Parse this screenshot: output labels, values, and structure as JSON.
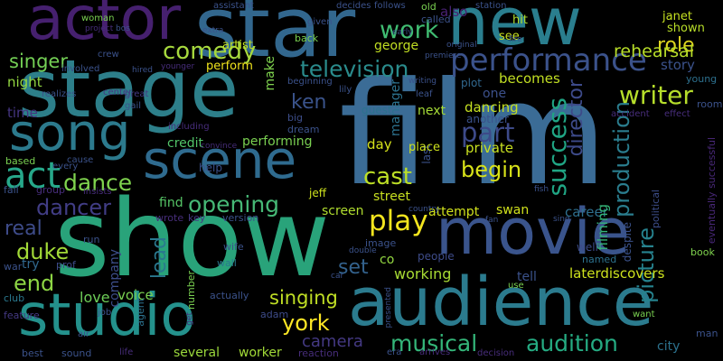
{
  "image": {
    "type": "word cloud",
    "background": "#000000",
    "words": [
      {
        "text": "film",
        "color": "#3b6c96"
      },
      {
        "text": "show",
        "color": "#29a37a"
      },
      {
        "text": "stage",
        "color": "#2d7f8a"
      },
      {
        "text": "star",
        "color": "#32678e"
      },
      {
        "text": "actor",
        "color": "#46206f"
      },
      {
        "text": "new",
        "color": "#2a7e8e"
      },
      {
        "text": "movie",
        "color": "#3a548c"
      },
      {
        "text": "audience",
        "color": "#2b7b8e"
      },
      {
        "text": "studio",
        "color": "#24918c"
      },
      {
        "text": "scene",
        "color": "#2f6b8f"
      },
      {
        "text": "song",
        "color": "#2c7a8d"
      },
      {
        "text": "act",
        "color": "#27a88a"
      },
      {
        "text": "performance",
        "color": "#3b528b"
      },
      {
        "text": "television",
        "color": "#2a8b8c"
      },
      {
        "text": "comedy",
        "color": "#a7d93e"
      },
      {
        "text": "singer",
        "color": "#74d055"
      },
      {
        "text": "work",
        "color": "#40bd72"
      },
      {
        "text": "role",
        "color": "#ddd41f"
      },
      {
        "text": "writer",
        "color": "#b6de2b"
      },
      {
        "text": "dance",
        "color": "#7fd34e"
      },
      {
        "text": "dancer",
        "color": "#413d85"
      },
      {
        "text": "opening",
        "color": "#46b876"
      },
      {
        "text": "play",
        "color": "#f3e51e"
      },
      {
        "text": "cast",
        "color": "#bddf26"
      },
      {
        "text": "begin",
        "color": "#d8e219"
      },
      {
        "text": "part",
        "color": "#3d4a89"
      },
      {
        "text": "director",
        "color": "#3d4a89"
      },
      {
        "text": "production",
        "color": "#2a7d8e"
      },
      {
        "text": "success",
        "color": "#20a584"
      },
      {
        "text": "picture",
        "color": "#26828e"
      },
      {
        "text": "ken",
        "color": "#3a538b"
      },
      {
        "text": "end",
        "color": "#8dd544"
      },
      {
        "text": "duke",
        "color": "#a2da37"
      },
      {
        "text": "real",
        "color": "#3e4c8a"
      },
      {
        "text": "set",
        "color": "#33628d"
      },
      {
        "text": "lead",
        "color": "#2a788e"
      },
      {
        "text": "york",
        "color": "#fde725"
      },
      {
        "text": "singing",
        "color": "#c0df25"
      },
      {
        "text": "musical",
        "color": "#34b679"
      },
      {
        "text": "audition",
        "color": "#25ab82"
      },
      {
        "text": "camera",
        "color": "#443983"
      },
      {
        "text": "love",
        "color": "#6ece58"
      },
      {
        "text": "voice",
        "color": "#7ad151"
      },
      {
        "text": "working",
        "color": "#a8db34"
      },
      {
        "text": "rehearsal",
        "color": "#b8de29"
      },
      {
        "text": "story",
        "color": "#3b528b"
      },
      {
        "text": "night",
        "color": "#93d741"
      },
      {
        "text": "time",
        "color": "#453581"
      },
      {
        "text": "george",
        "color": "#c2df23"
      },
      {
        "text": "becomes",
        "color": "#c2df23"
      },
      {
        "text": "dancing",
        "color": "#c5e021"
      },
      {
        "text": "private",
        "color": "#c8e020"
      },
      {
        "text": "career",
        "color": "#2e6f8e"
      },
      {
        "text": "filming",
        "color": "#35b779"
      },
      {
        "text": "laterdiscovers",
        "color": "#cde11d"
      },
      {
        "text": "day",
        "color": "#d5e21a"
      },
      {
        "text": "several",
        "color": "#9bd93c"
      },
      {
        "text": "worker",
        "color": "#a2da37"
      },
      {
        "text": "city",
        "color": "#2c728e"
      },
      {
        "text": "company",
        "color": "#3d4e8a"
      },
      {
        "text": "performing",
        "color": "#7ad151"
      },
      {
        "text": "credit",
        "color": "#52c569"
      },
      {
        "text": "find",
        "color": "#56c667"
      },
      {
        "text": "screen",
        "color": "#b0dd2f"
      },
      {
        "text": "swan",
        "color": "#d0e11c"
      },
      {
        "text": "street",
        "color": "#c8e020"
      },
      {
        "text": "next",
        "color": "#a5db36"
      },
      {
        "text": "manager",
        "color": "#2c728e"
      },
      {
        "text": "one",
        "color": "#3c508b"
      },
      {
        "text": "attempt",
        "color": "#d0e11c"
      },
      {
        "text": "make",
        "color": "#7fd34e"
      },
      {
        "text": "perform",
        "color": "#f1e51d"
      },
      {
        "text": "artist",
        "color": "#c2df23"
      },
      {
        "text": "hit",
        "color": "#b0dd2f"
      },
      {
        "text": "see",
        "color": "#c8e020"
      },
      {
        "text": "also",
        "color": "#482173"
      },
      {
        "text": "janet",
        "color": "#c5e021"
      },
      {
        "text": "shown",
        "color": "#b8de29"
      },
      {
        "text": "tell",
        "color": "#3b528b"
      },
      {
        "text": "co",
        "color": "#93d741"
      },
      {
        "text": "help",
        "color": "#3b528b"
      },
      {
        "text": "jeff",
        "color": "#cde11d"
      },
      {
        "text": "people",
        "color": "#3e4c8a"
      },
      {
        "text": "well",
        "color": "#3e4c8a"
      },
      {
        "text": "book",
        "color": "#7fd34e"
      },
      {
        "text": "named",
        "color": "#2c728e"
      },
      {
        "text": "despite",
        "color": "#3b528b"
      },
      {
        "text": "political",
        "color": "#3d4e8a"
      },
      {
        "text": "eventually successful",
        "color": "#482878"
      },
      {
        "text": "young",
        "color": "#2d708e"
      },
      {
        "text": "last",
        "color": "#3b528b"
      },
      {
        "text": "place",
        "color": "#cde11d"
      },
      {
        "text": "another",
        "color": "#3b528b"
      },
      {
        "text": "guest",
        "color": "#2c728e"
      },
      {
        "text": "plot",
        "color": "#31688e"
      },
      {
        "text": "room",
        "color": "#3b528b"
      },
      {
        "text": "accident",
        "color": "#472d7b"
      },
      {
        "text": "effect",
        "color": "#472d7b"
      },
      {
        "text": "big",
        "color": "#3d4e8a"
      },
      {
        "text": "dream",
        "color": "#3b528b"
      },
      {
        "text": "feature",
        "color": "#443983"
      },
      {
        "text": "club",
        "color": "#2a788e"
      },
      {
        "text": "group",
        "color": "#472d7b"
      },
      {
        "text": "fall",
        "color": "#3b528b"
      },
      {
        "text": "agent",
        "color": "#2c728e"
      },
      {
        "text": "war",
        "color": "#3b528b"
      },
      {
        "text": "try",
        "color": "#31688e"
      },
      {
        "text": "prof",
        "color": "#3e4c8a"
      },
      {
        "text": "wife",
        "color": "#3b528b"
      },
      {
        "text": "wall",
        "color": "#2a788e"
      },
      {
        "text": "number",
        "color": "#7ad151"
      },
      {
        "text": "actually",
        "color": "#3b528b"
      },
      {
        "text": "adam",
        "color": "#3e4c8a"
      },
      {
        "text": "image",
        "color": "#3b528b"
      },
      {
        "text": "version",
        "color": "#3b528b"
      },
      {
        "text": "key",
        "color": "#443983"
      },
      {
        "text": "wrote",
        "color": "#472d7b"
      },
      {
        "text": "run",
        "color": "#3b528b"
      },
      {
        "text": "center",
        "color": "#443983"
      },
      {
        "text": "great",
        "color": "#443983"
      },
      {
        "text": "gail",
        "color": "#3b528b"
      },
      {
        "text": "leaf",
        "color": "#3b528b"
      },
      {
        "text": "lily",
        "color": "#3b528b"
      },
      {
        "text": "beginning",
        "color": "#3b528b"
      },
      {
        "text": "back",
        "color": "#7ad151"
      },
      {
        "text": "given",
        "color": "#3b528b"
      },
      {
        "text": "including",
        "color": "#472d7b"
      },
      {
        "text": "convince",
        "color": "#472d7b"
      },
      {
        "text": "based",
        "color": "#7ad151"
      },
      {
        "text": "every",
        "color": "#3b528b"
      },
      {
        "text": "cause",
        "color": "#3b528b"
      },
      {
        "text": "insists",
        "color": "#472d7b"
      },
      {
        "text": "crew",
        "color": "#3b528b"
      },
      {
        "text": "involved",
        "color": "#3b528b"
      },
      {
        "text": "realizes",
        "color": "#3b528b"
      },
      {
        "text": "job",
        "color": "#3b528b"
      },
      {
        "text": "air",
        "color": "#3b528b"
      },
      {
        "text": "best",
        "color": "#3b528b"
      },
      {
        "text": "sound",
        "color": "#3b528b"
      },
      {
        "text": "life",
        "color": "#472d7b"
      },
      {
        "text": "reaction",
        "color": "#472d7b"
      },
      {
        "text": "era",
        "color": "#3b528b"
      },
      {
        "text": "arrives",
        "color": "#472d7b"
      },
      {
        "text": "decision",
        "color": "#472d7b"
      },
      {
        "text": "man",
        "color": "#3b528b"
      },
      {
        "text": "want",
        "color": "#7ad151"
      },
      {
        "text": "assistant",
        "color": "#3b528b"
      },
      {
        "text": "decides",
        "color": "#3b528b"
      },
      {
        "text": "follows",
        "color": "#3b528b"
      },
      {
        "text": "old",
        "color": "#7ad151"
      },
      {
        "text": "station",
        "color": "#3b528b"
      },
      {
        "text": "called",
        "color": "#3b528b"
      },
      {
        "text": "woman",
        "color": "#7ad151"
      },
      {
        "text": "project",
        "color": "#472d7b"
      },
      {
        "text": "bos",
        "color": "#3b528b"
      },
      {
        "text": "extra",
        "color": "#3b528b"
      },
      {
        "text": "hired",
        "color": "#3b528b"
      },
      {
        "text": "younger",
        "color": "#472d7b"
      },
      {
        "text": "original",
        "color": "#3b528b"
      },
      {
        "text": "fire",
        "color": "#3b528b"
      },
      {
        "text": "premiere",
        "color": "#3b528b"
      },
      {
        "text": "early",
        "color": "#3b528b"
      },
      {
        "text": "writing",
        "color": "#3b528b"
      },
      {
        "text": "country",
        "color": "#3b528b"
      },
      {
        "text": "fan",
        "color": "#3b528b"
      },
      {
        "text": "fish",
        "color": "#3b528b"
      },
      {
        "text": "sing",
        "color": "#3b528b"
      },
      {
        "text": "use",
        "color": "#7ad151"
      },
      {
        "text": "presented",
        "color": "#3b528b"
      },
      {
        "text": "double",
        "color": "#3b528b"
      },
      {
        "text": "car",
        "color": "#3b528b"
      },
      {
        "text": "get",
        "color": "#472d7b"
      }
    ]
  }
}
